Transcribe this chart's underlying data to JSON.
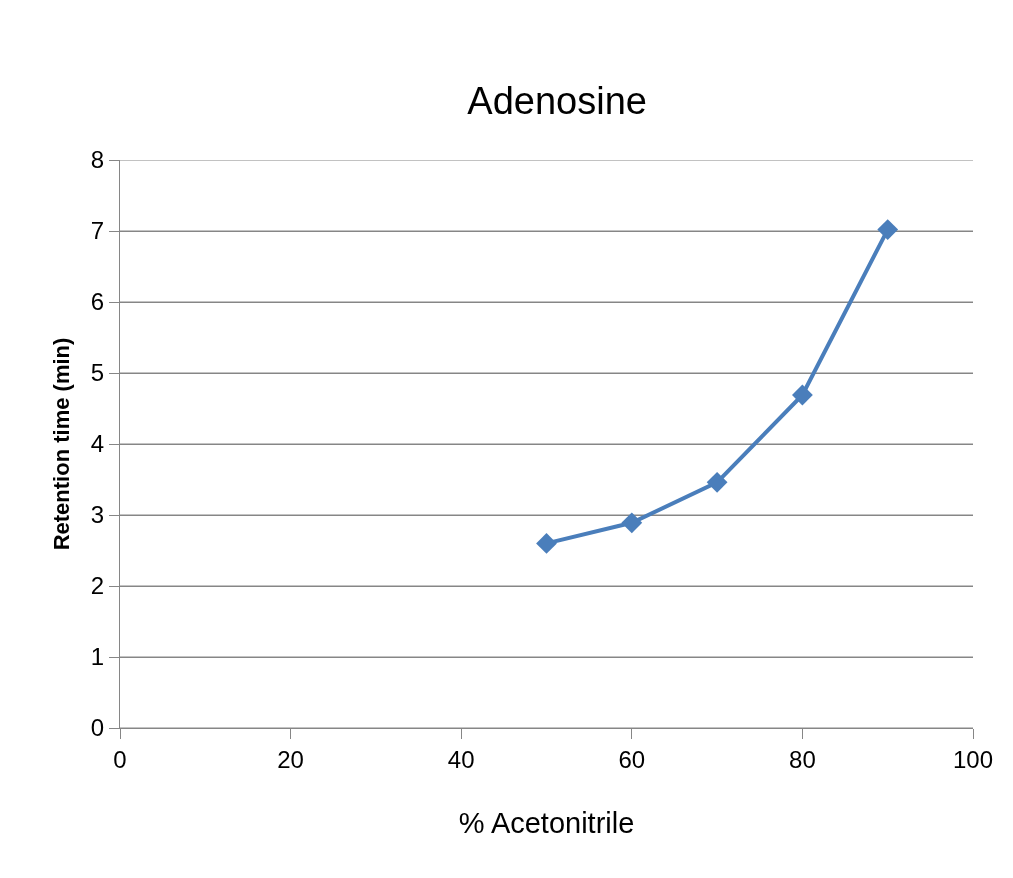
{
  "chart_data": {
    "type": "line",
    "title": "Adenosine",
    "xlabel": "% Acetonitrile",
    "ylabel": "Retention time (min)",
    "x": [
      50,
      60,
      70,
      80,
      90
    ],
    "series": [
      {
        "color": "#4a7ebb",
        "values": [
          2.6,
          2.89,
          3.46,
          4.69,
          7.02
        ]
      }
    ],
    "xlim": [
      0,
      100
    ],
    "xticks": [
      0,
      20,
      40,
      60,
      80,
      100
    ],
    "ylim": [
      0,
      8
    ],
    "yticks": [
      0,
      1,
      2,
      3,
      4,
      5,
      6,
      7,
      8
    ],
    "grid": "y",
    "marker": "diamond",
    "line_style": "solid"
  }
}
